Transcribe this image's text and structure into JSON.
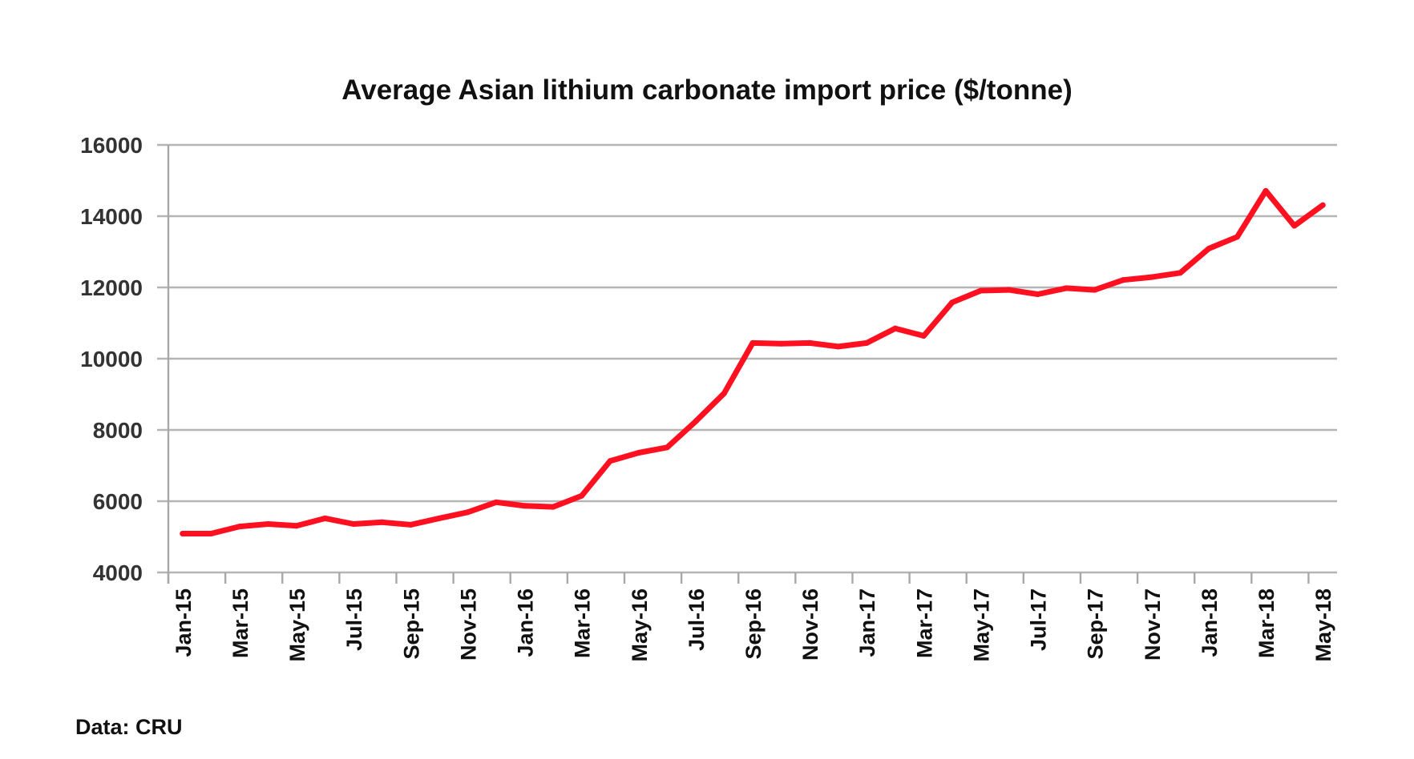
{
  "chart_data": {
    "type": "line",
    "title": "Average Asian lithium carbonate import price ($/tonne)",
    "xlabel": "",
    "ylabel": "",
    "ylim": [
      4000,
      16000
    ],
    "yticks": [
      "4000",
      "6000",
      "8000",
      "10000",
      "12000",
      "14000",
      "16000"
    ],
    "grid": true,
    "legend": "none",
    "source": "Data: CRU",
    "x": [
      "Jan-15",
      "Feb-15",
      "Mar-15",
      "Apr-15",
      "May-15",
      "Jun-15",
      "Jul-15",
      "Aug-15",
      "Sep-15",
      "Oct-15",
      "Nov-15",
      "Dec-15",
      "Jan-16",
      "Feb-16",
      "Mar-16",
      "Apr-16",
      "May-16",
      "Jun-16",
      "Jul-16",
      "Aug-16",
      "Sep-16",
      "Oct-16",
      "Nov-16",
      "Dec-16",
      "Jan-17",
      "Feb-17",
      "Mar-17",
      "Apr-17",
      "May-17",
      "Jun-17",
      "Jul-17",
      "Aug-17",
      "Sep-17",
      "Oct-17",
      "Nov-17",
      "Dec-17",
      "Jan-18",
      "Feb-18",
      "Mar-18",
      "Apr-18",
      "May-18"
    ],
    "xtick_labels": [
      "Jan-15",
      "Mar-15",
      "May-15",
      "Jul-15",
      "Sep-15",
      "Nov-15",
      "Jan-16",
      "Mar-16",
      "May-16",
      "Jul-16",
      "Sep-16",
      "Nov-16",
      "Jan-17",
      "Mar-17",
      "May-17",
      "Jul-17",
      "Sep-17",
      "Nov-17",
      "Jan-18",
      "Mar-18",
      "May-18"
    ],
    "series": [
      {
        "name": "Lithium carbonate import price",
        "color": "#ff1020",
        "values": [
          5090,
          5090,
          5290,
          5360,
          5310,
          5520,
          5360,
          5410,
          5340,
          5520,
          5690,
          5970,
          5870,
          5840,
          6150,
          7130,
          7360,
          7510,
          8240,
          9030,
          10440,
          10420,
          10440,
          10340,
          10440,
          10850,
          10640,
          11580,
          11910,
          11930,
          11810,
          11980,
          11930,
          12210,
          12290,
          12410,
          13090,
          13420,
          14710,
          13730,
          14310
        ]
      }
    ]
  }
}
